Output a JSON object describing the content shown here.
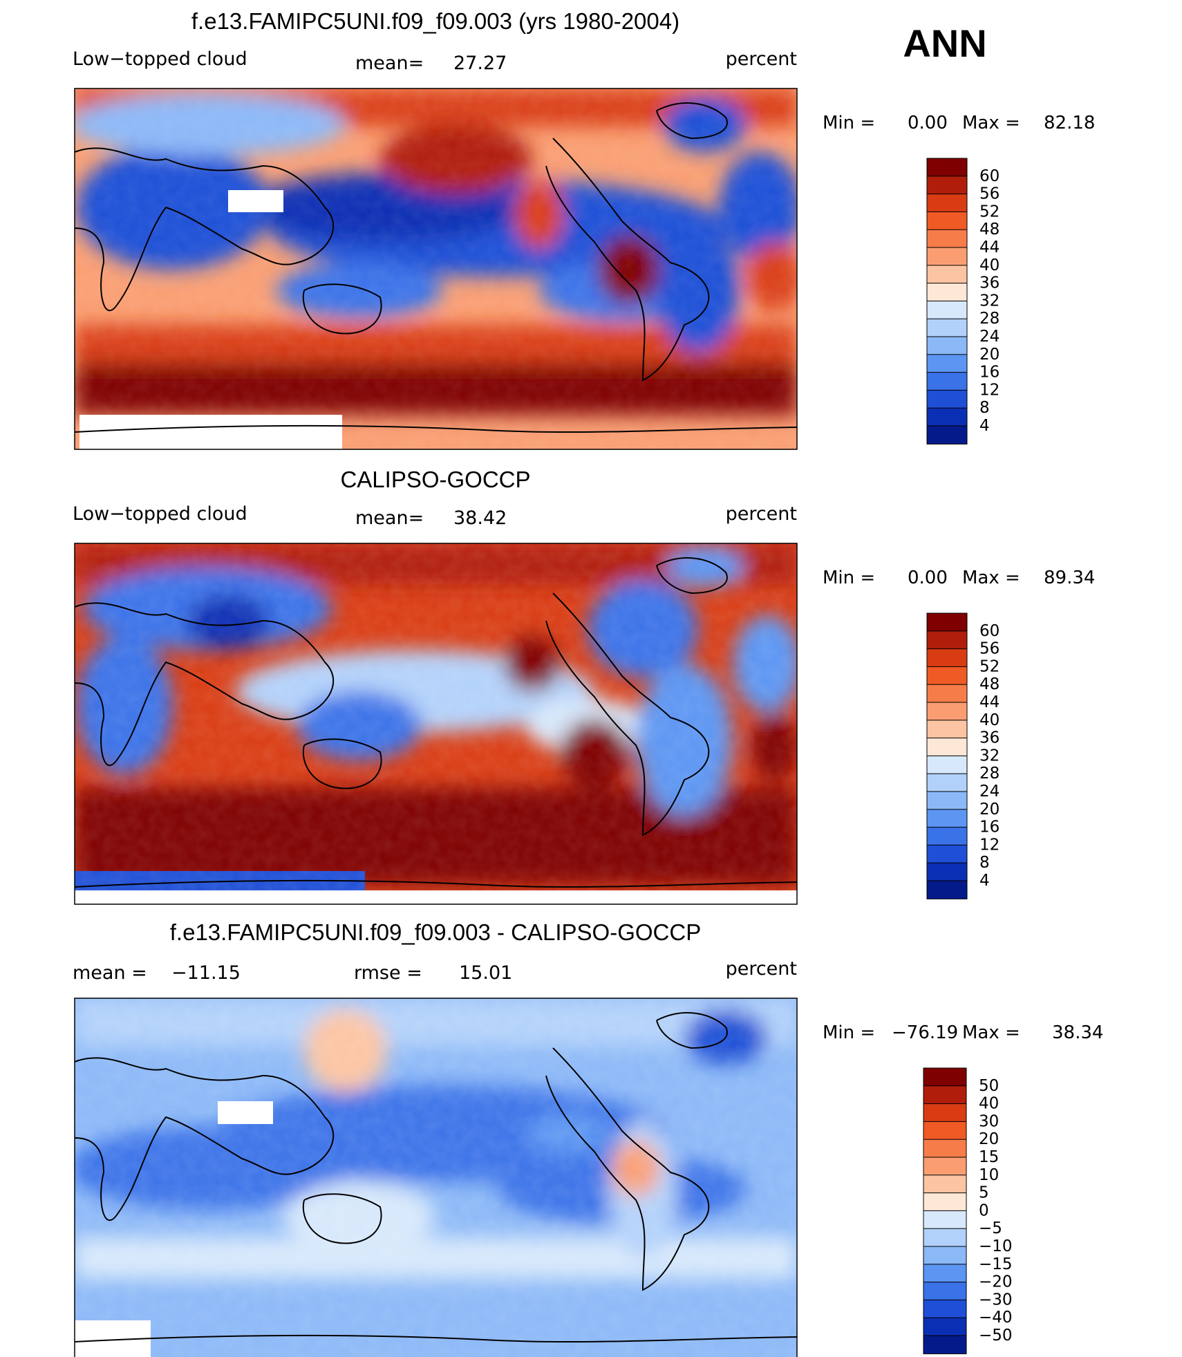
{
  "season": "ANN",
  "chart_data": [
    {
      "type": "heatmap",
      "title": "f.e13.FAMIPC5UNI.f09_f09.003 (yrs 1980-2004)",
      "variable": "Low−topped cloud",
      "units": "percent",
      "mean_label": "mean=",
      "mean_value": "27.27",
      "min_label": "Min  =",
      "min_value": "0.00",
      "max_label": "Max  =",
      "max_value": "82.18",
      "colorbar": {
        "levels": [
          "60",
          "56",
          "52",
          "48",
          "44",
          "40",
          "36",
          "32",
          "28",
          "24",
          "20",
          "16",
          "12",
          "8",
          "4"
        ],
        "colors": [
          "#7f0000",
          "#b01e0b",
          "#d93c13",
          "#f05a24",
          "#f67d4a",
          "#fa9e72",
          "#fcc4a2",
          "#fde8d7",
          "#d7e8fb",
          "#b2d1fa",
          "#8bb8f7",
          "#5c95f2",
          "#3a72e8",
          "#1f4fd6",
          "#0b2fb4",
          "#051a8a"
        ]
      }
    },
    {
      "type": "heatmap",
      "title": "CALIPSO-GOCCP",
      "variable": "Low−topped cloud",
      "units": "percent",
      "mean_label": "mean=",
      "mean_value": "38.42",
      "min_label": "Min  =",
      "min_value": "0.00",
      "max_label": "Max  =",
      "max_value": "89.34",
      "colorbar": {
        "levels": [
          "60",
          "56",
          "52",
          "48",
          "44",
          "40",
          "36",
          "32",
          "28",
          "24",
          "20",
          "16",
          "12",
          "8",
          "4"
        ],
        "colors": [
          "#7f0000",
          "#b01e0b",
          "#d93c13",
          "#f05a24",
          "#f67d4a",
          "#fa9e72",
          "#fcc4a2",
          "#fde8d7",
          "#d7e8fb",
          "#b2d1fa",
          "#8bb8f7",
          "#5c95f2",
          "#3a72e8",
          "#1f4fd6",
          "#0b2fb4",
          "#051a8a"
        ]
      }
    },
    {
      "type": "heatmap",
      "title": "f.e13.FAMIPC5UNI.f09_f09.003 - CALIPSO-GOCCP",
      "units": "percent",
      "mean_label": "mean  =",
      "mean_value": "−11.15",
      "rmse_label": "rmse  =",
      "rmse_value": "15.01",
      "min_label": "Min  =",
      "min_value": "−76.19",
      "max_label": "Max  =",
      "max_value": "38.34",
      "colorbar": {
        "levels": [
          "50",
          "40",
          "30",
          "20",
          "15",
          "10",
          "5",
          "0",
          "−5",
          "−10",
          "−15",
          "−20",
          "−30",
          "−40",
          "−50"
        ],
        "colors": [
          "#7f0000",
          "#b01e0b",
          "#d93c13",
          "#f05a24",
          "#f67d4a",
          "#fa9e72",
          "#fcc4a2",
          "#fde8d7",
          "#d7e8fb",
          "#b2d1fa",
          "#8bb8f7",
          "#5c95f2",
          "#3a72e8",
          "#1f4fd6",
          "#0b2fb4",
          "#051a8a"
        ]
      }
    }
  ]
}
